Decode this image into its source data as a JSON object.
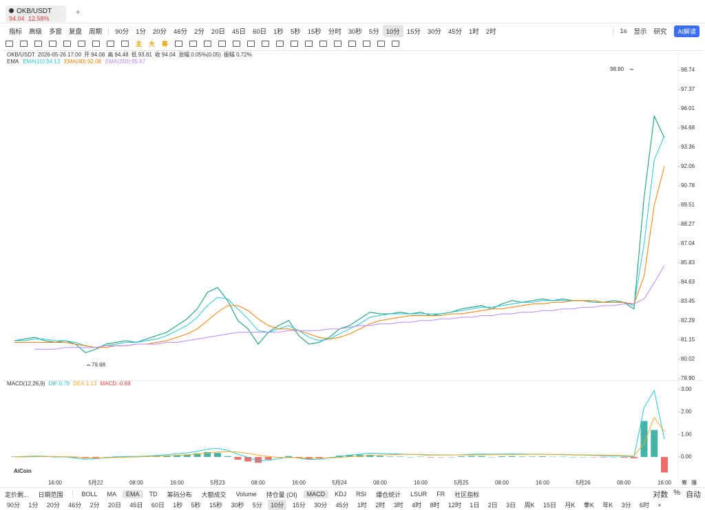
{
  "tab": {
    "symbol": "OKB/USDT",
    "price": "94.04",
    "change": "12.58%",
    "add": "+"
  },
  "toolbar": {
    "tools": [
      "指标",
      "高级",
      "多窗",
      "复盘",
      "周期"
    ],
    "periods": [
      {
        "label": "90分"
      },
      {
        "label": "1分"
      },
      {
        "label": "20分"
      },
      {
        "label": "46分"
      },
      {
        "label": "2分"
      },
      {
        "label": "20日"
      },
      {
        "label": "45日"
      },
      {
        "label": "60日"
      },
      {
        "label": "1秒"
      },
      {
        "label": "5秒"
      },
      {
        "label": "15秒"
      },
      {
        "label": "分时"
      },
      {
        "label": "30秒"
      },
      {
        "label": "5分"
      },
      {
        "label": "10分",
        "active": true
      },
      {
        "label": "15分"
      },
      {
        "label": "30分"
      },
      {
        "label": "45分"
      },
      {
        "label": "1时"
      },
      {
        "label": "2时"
      }
    ],
    "right": [
      "1s",
      "显示",
      "研究"
    ],
    "ai": "AI解读"
  },
  "drawing_tools": [
    "主",
    "大",
    "筹"
  ],
  "chart_data": [
    {
      "type": "line",
      "log": true,
      "grid": false,
      "info": [
        "2026-05-26 17:00",
        "开 94.08",
        "高 94.48",
        "低 93.81",
        "收 94.04",
        "涨幅 0.05%(0.05)",
        "振幅 0.72%"
      ],
      "subtitle": "EMA",
      "ylim": [
        78.78,
        99.19
      ],
      "yticks": [
        98.74,
        97.37,
        96.01,
        94.68,
        93.36,
        92.06,
        90.78,
        89.51,
        88.27,
        87.04,
        85.83,
        84.63,
        83.45,
        82.29,
        81.15,
        80.02,
        {
          "value": 78.9,
          "label": "78.90"
        }
      ],
      "annotations": [
        {
          "value": 98.8,
          "label": "98.80"
        },
        {
          "value": 79.68,
          "label": "79.68"
        }
      ],
      "series": [
        {
          "name": "OKB/USDT",
          "color": "#2aa58a",
          "values": [
            81.1,
            81.2,
            81.3,
            81.1,
            81.0,
            81.1,
            80.9,
            80.4,
            80.6,
            80.9,
            81.0,
            81.1,
            81.0,
            81.2,
            81.4,
            81.6,
            82.0,
            82.4,
            83.0,
            84.0,
            84.3,
            83.5,
            82.3,
            81.8,
            80.9,
            81.6,
            82.0,
            82.3,
            81.4,
            80.9,
            81.0,
            81.3,
            81.8,
            82.0,
            82.4,
            82.8,
            82.7,
            82.7,
            82.8,
            82.7,
            82.8,
            82.6,
            82.7,
            82.8,
            83.0,
            83.1,
            83.2,
            83.0,
            83.3,
            83.5,
            83.4,
            83.5,
            83.6,
            83.5,
            83.6,
            83.5,
            83.5,
            83.4,
            83.4,
            83.5,
            83.4,
            83.0,
            90.0,
            95.5,
            94.0
          ]
        },
        {
          "name": "EMA(10):94.13",
          "color": "#26c6da",
          "values": [
            81.1,
            81.1,
            81.2,
            81.2,
            81.1,
            81.1,
            81.0,
            80.8,
            80.7,
            80.8,
            80.9,
            81.0,
            81.0,
            81.1,
            81.2,
            81.4,
            81.7,
            82.0,
            82.5,
            83.2,
            83.7,
            83.6,
            83.0,
            82.4,
            81.7,
            81.6,
            81.8,
            82.0,
            81.7,
            81.3,
            81.1,
            81.2,
            81.5,
            81.8,
            82.1,
            82.5,
            82.6,
            82.7,
            82.7,
            82.7,
            82.7,
            82.7,
            82.7,
            82.8,
            82.9,
            83.0,
            83.1,
            83.1,
            83.2,
            83.3,
            83.4,
            83.4,
            83.5,
            83.5,
            83.5,
            83.5,
            83.5,
            83.5,
            83.4,
            83.4,
            83.4,
            83.2,
            87.0,
            92.5,
            94.13
          ]
        },
        {
          "name": "EMA(40):92.08",
          "color": "#f57c00",
          "values": [
            81.0,
            81.0,
            81.0,
            81.0,
            81.0,
            81.0,
            80.9,
            80.8,
            80.7,
            80.7,
            80.8,
            80.8,
            80.9,
            80.9,
            81.0,
            81.1,
            81.3,
            81.5,
            81.8,
            82.3,
            82.8,
            83.2,
            83.2,
            82.9,
            82.4,
            82.0,
            81.8,
            81.8,
            81.7,
            81.5,
            81.3,
            81.2,
            81.3,
            81.5,
            81.8,
            82.1,
            82.3,
            82.4,
            82.5,
            82.6,
            82.6,
            82.6,
            82.6,
            82.7,
            82.7,
            82.8,
            82.9,
            83.0,
            83.0,
            83.1,
            83.2,
            83.3,
            83.3,
            83.4,
            83.4,
            83.5,
            83.5,
            83.5,
            83.4,
            83.4,
            83.4,
            83.3,
            85.0,
            89.5,
            92.08
          ]
        },
        {
          "name": "EMA(250):85.67",
          "color": "#b388ff",
          "values": [
            null,
            null,
            80.6,
            80.6,
            80.6,
            80.7,
            80.7,
            80.7,
            80.7,
            80.8,
            80.8,
            80.8,
            80.9,
            80.9,
            80.9,
            81.0,
            81.0,
            81.1,
            81.2,
            81.3,
            81.4,
            81.5,
            81.6,
            81.6,
            81.6,
            81.6,
            81.6,
            81.7,
            81.7,
            81.7,
            81.7,
            81.8,
            81.8,
            81.9,
            82.0,
            82.0,
            82.1,
            82.1,
            82.2,
            82.2,
            82.3,
            82.3,
            82.4,
            82.4,
            82.5,
            82.5,
            82.6,
            82.6,
            82.7,
            82.7,
            82.8,
            82.8,
            82.9,
            82.9,
            83.0,
            83.0,
            83.1,
            83.1,
            83.2,
            83.2,
            83.3,
            83.3,
            83.6,
            84.6,
            85.67
          ]
        }
      ]
    },
    {
      "type": "combo",
      "title": "MACD(12,26,9)",
      "grid": false,
      "categories": [
        null,
        null,
        null,
        null,
        "16:00",
        null,
        null,
        null,
        "5月22",
        null,
        null,
        null,
        "08:00",
        null,
        null,
        null,
        "16:00",
        null,
        null,
        null,
        "5月23",
        null,
        null,
        null,
        "08:00",
        null,
        null,
        null,
        "16:00",
        null,
        null,
        null,
        "5月24",
        null,
        null,
        null,
        "08:00",
        null,
        null,
        null,
        "16:00",
        null,
        null,
        null,
        "5月25",
        null,
        null,
        null,
        "08:00",
        null,
        null,
        null,
        "16:00",
        null,
        null,
        null,
        "5月26",
        null,
        null,
        null,
        "08:00",
        null,
        null,
        null,
        "16:00"
      ],
      "ylim": [
        -0.92,
        3.24
      ],
      "yticks": [
        {
          "value": 3,
          "label": "3.00"
        },
        {
          "value": 2,
          "label": "2.00"
        },
        {
          "value": 1,
          "label": "1.00"
        },
        {
          "value": 0,
          "label": "0.00"
        }
      ],
      "colors": {
        "positive": "#26a69a",
        "negative": "#ef5350"
      },
      "series": [
        {
          "name": "DIF:0.79",
          "type": "line",
          "color": "#26c6da",
          "values": [
            0.0,
            0.02,
            0.04,
            0.03,
            0.0,
            0.0,
            -0.05,
            -0.1,
            -0.08,
            -0.03,
            0.0,
            0.02,
            0.02,
            0.04,
            0.07,
            0.1,
            0.14,
            0.18,
            0.25,
            0.35,
            0.38,
            0.3,
            0.12,
            -0.02,
            -0.18,
            -0.15,
            -0.08,
            0.0,
            -0.05,
            -0.12,
            -0.1,
            -0.05,
            0.03,
            0.08,
            0.13,
            0.17,
            0.16,
            0.14,
            0.13,
            0.11,
            0.1,
            0.08,
            0.08,
            0.08,
            0.1,
            0.12,
            0.13,
            0.12,
            0.13,
            0.14,
            0.13,
            0.12,
            0.12,
            0.11,
            0.1,
            0.09,
            0.08,
            0.07,
            0.05,
            0.05,
            0.03,
            0.0,
            2.2,
            2.95,
            0.79
          ]
        },
        {
          "name": "DEA:1.13",
          "type": "line",
          "color": "#f5a623",
          "values": [
            0.0,
            0.0,
            0.01,
            0.02,
            0.02,
            0.01,
            0.0,
            -0.03,
            -0.05,
            -0.04,
            -0.03,
            -0.01,
            0.0,
            0.02,
            0.03,
            0.05,
            0.07,
            0.1,
            0.13,
            0.18,
            0.22,
            0.24,
            0.22,
            0.16,
            0.08,
            0.02,
            -0.02,
            -0.03,
            -0.04,
            -0.05,
            -0.06,
            -0.05,
            -0.02,
            0.01,
            0.04,
            0.07,
            0.09,
            0.1,
            0.11,
            0.11,
            0.11,
            0.1,
            0.09,
            0.09,
            0.09,
            0.09,
            0.1,
            0.1,
            0.11,
            0.11,
            0.11,
            0.11,
            0.11,
            0.11,
            0.11,
            0.1,
            0.1,
            0.09,
            0.08,
            0.07,
            0.06,
            0.05,
            0.6,
            1.75,
            1.13
          ]
        },
        {
          "name": "MACD:-0.69",
          "type": "bar",
          "color": "#e53935",
          "values": [
            0.02,
            0.03,
            0.04,
            0.02,
            0.0,
            0.01,
            -0.03,
            -0.06,
            -0.04,
            0.0,
            0.02,
            0.02,
            0.01,
            0.03,
            0.05,
            0.06,
            0.08,
            0.1,
            0.16,
            0.22,
            0.18,
            0.04,
            -0.12,
            -0.2,
            -0.26,
            -0.12,
            -0.02,
            0.04,
            -0.04,
            -0.1,
            -0.06,
            0.0,
            0.06,
            0.08,
            0.1,
            0.1,
            0.05,
            0.02,
            0.02,
            0.0,
            0.01,
            -0.02,
            -0.01,
            0.0,
            0.03,
            0.04,
            0.04,
            0.0,
            0.03,
            0.04,
            0.02,
            0.02,
            0.03,
            0.01,
            0.01,
            0.0,
            0.0,
            -0.01,
            -0.02,
            0.0,
            -0.03,
            -0.06,
            1.6,
            1.2,
            -0.69
          ]
        }
      ]
    }
  ],
  "corner": [
    "筹",
    "爆"
  ],
  "logo": "AiCoin",
  "bottom_bar": {
    "left": [
      "定价剩...",
      "日期范围"
    ],
    "indicators": [
      {
        "label": "BOLL"
      },
      {
        "label": "MA"
      },
      {
        "label": "EMA",
        "active": true
      },
      {
        "label": "TD"
      },
      {
        "label": "筹码分布"
      },
      {
        "label": "大额成交"
      },
      {
        "label": "Volume"
      },
      {
        "label": "持仓量 (OI)"
      },
      {
        "label": "MACD",
        "active": true
      },
      {
        "label": "KDJ"
      },
      {
        "label": "RSI"
      },
      {
        "label": "爆仓统计"
      },
      {
        "label": "LSUR"
      },
      {
        "label": "FR"
      },
      {
        "label": "社区指标"
      }
    ],
    "right": [
      "对数",
      "%",
      "自动"
    ]
  },
  "period_bar": [
    {
      "label": "90分"
    },
    {
      "label": "1分"
    },
    {
      "label": "20分"
    },
    {
      "label": "46分"
    },
    {
      "label": "2分"
    },
    {
      "label": "20日"
    },
    {
      "label": "45日"
    },
    {
      "label": "60日"
    },
    {
      "label": "1秒"
    },
    {
      "label": "5秒"
    },
    {
      "label": "15秒"
    },
    {
      "label": "30秒"
    },
    {
      "label": "5分"
    },
    {
      "label": "10分",
      "active": true
    },
    {
      "label": "15分"
    },
    {
      "label": "30分"
    },
    {
      "label": "45分"
    },
    {
      "label": "1时"
    },
    {
      "label": "2时"
    },
    {
      "label": "3时"
    },
    {
      "label": "4时"
    },
    {
      "label": "8时"
    },
    {
      "label": "12时"
    },
    {
      "label": "1日"
    },
    {
      "label": "2日"
    },
    {
      "label": "3日"
    },
    {
      "label": "周K"
    },
    {
      "label": "15日"
    },
    {
      "label": "月K"
    },
    {
      "label": "季K"
    },
    {
      "label": "年K"
    },
    {
      "label": "3分"
    },
    {
      "label": "6时"
    },
    {
      "label": "×"
    }
  ]
}
